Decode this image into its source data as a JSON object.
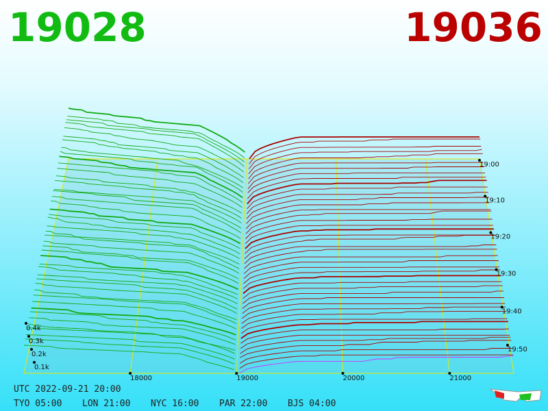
{
  "header": {
    "bid": "19028",
    "ask": "19036"
  },
  "price_labels": [
    "18000",
    "19000",
    "20000",
    "21000"
  ],
  "volume_labels": [
    "0.4k",
    "0.3k",
    "0.2k",
    "0.1k"
  ],
  "time_labels": [
    "19:00",
    "19:10",
    "19:20",
    "19:30",
    "19:40",
    "19:50"
  ],
  "footer": {
    "utc": "UTC 2022-09-21 20:00",
    "clocks": [
      "TYO 05:00",
      "LON 21:00",
      "NYC 16:00",
      "PAR 22:00",
      "BJS 04:00"
    ]
  }
}
